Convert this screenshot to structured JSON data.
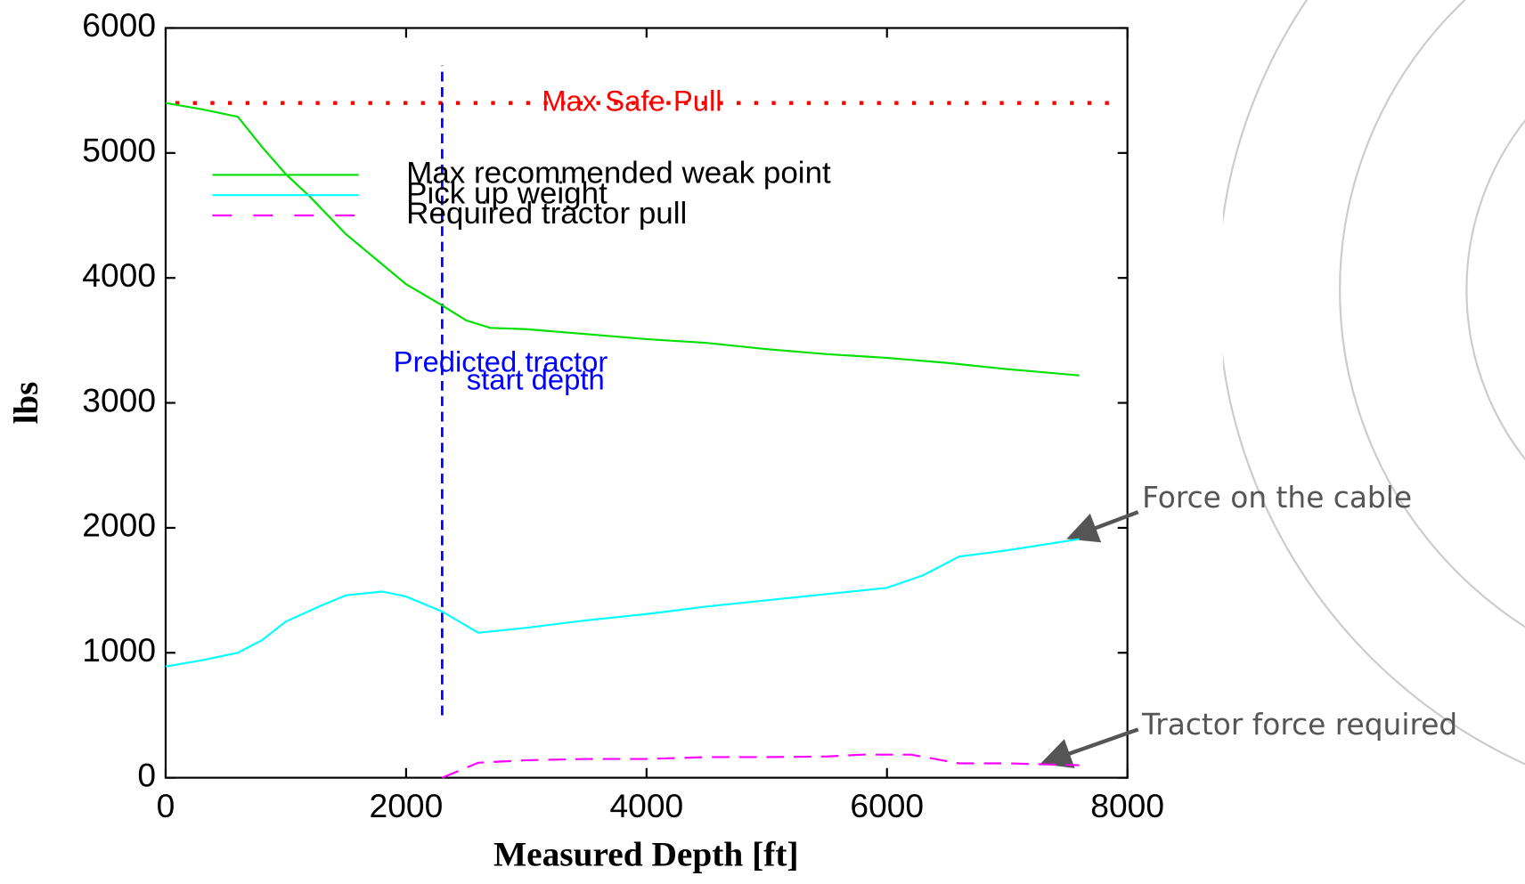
{
  "chart_data": {
    "type": "line",
    "xlabel": "Measured Depth [ft]",
    "ylabel": "lbs",
    "xlim": [
      0,
      8000
    ],
    "ylim": [
      0,
      6000
    ],
    "xticks": [
      0,
      2000,
      4000,
      6000,
      8000
    ],
    "yticks": [
      0,
      1000,
      2000,
      3000,
      4000,
      5000,
      6000
    ],
    "series": [
      {
        "name": "Max recommended weak point",
        "color": "#00e000",
        "dash": "solid",
        "x": [
          0,
          300,
          600,
          800,
          1000,
          1200,
          1500,
          2000,
          2300,
          2500,
          2700,
          3000,
          3500,
          4000,
          4500,
          5000,
          5500,
          6000,
          6500,
          7000,
          7600
        ],
        "values": [
          5400,
          5350,
          5290,
          5050,
          4830,
          4650,
          4350,
          3950,
          3780,
          3660,
          3600,
          3590,
          3550,
          3510,
          3480,
          3430,
          3390,
          3360,
          3320,
          3270,
          3220
        ]
      },
      {
        "name": "Pick up weight",
        "color": "#00ffff",
        "dash": "solid",
        "x": [
          0,
          300,
          600,
          800,
          1000,
          1300,
          1500,
          1800,
          2000,
          2300,
          2600,
          3000,
          3500,
          4000,
          4500,
          5000,
          5500,
          6000,
          6300,
          6600,
          7000,
          7600
        ],
        "values": [
          890,
          940,
          1000,
          1100,
          1250,
          1380,
          1460,
          1490,
          1450,
          1330,
          1160,
          1200,
          1260,
          1310,
          1370,
          1420,
          1470,
          1520,
          1620,
          1770,
          1820,
          1910
        ]
      },
      {
        "name": "Required tractor pull",
        "color": "#ff00ff",
        "dash": "dashed",
        "x": [
          2300,
          2600,
          3000,
          3500,
          4000,
          4500,
          5000,
          5500,
          5800,
          6200,
          6600,
          7000,
          7600
        ],
        "values": [
          0,
          120,
          140,
          150,
          150,
          165,
          165,
          170,
          185,
          185,
          115,
          115,
          100
        ]
      }
    ],
    "reference_lines": [
      {
        "axis": "y",
        "value": 5400,
        "label": "Max Safe Pull",
        "color": "#ff0000"
      },
      {
        "axis": "x",
        "value": 2300,
        "span": [
          500,
          5700
        ],
        "label_lines": [
          "Predicted tractor",
          "start depth"
        ],
        "color": "#0000ff"
      }
    ],
    "annotations": [
      "Force on the cable",
      "Tractor force required"
    ]
  }
}
